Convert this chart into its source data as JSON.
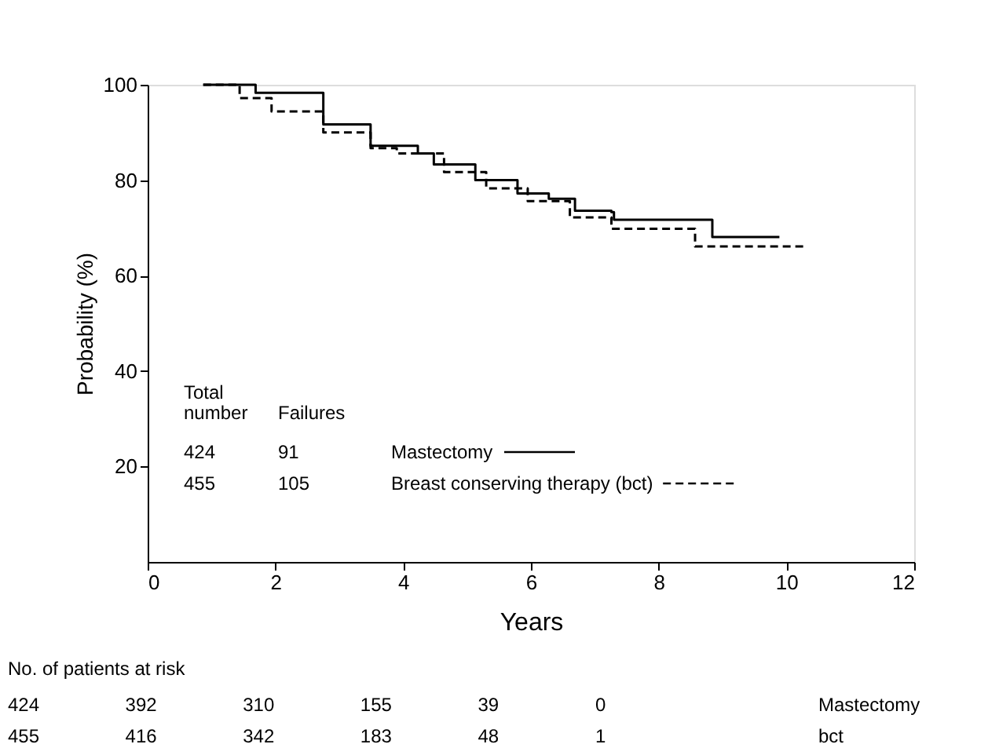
{
  "chart_data": {
    "type": "step",
    "xlabel": "Years",
    "ylabel": "Probability (%)",
    "xlim": [
      0,
      12
    ],
    "xticks": [
      0,
      2,
      4,
      6,
      8,
      10,
      12
    ],
    "ylim": [
      0,
      100
    ],
    "yticks": [
      20,
      40,
      60,
      80,
      100
    ],
    "grid": false,
    "legend": "left",
    "marker": "none",
    "series": [
      {
        "name": "Mastectomy",
        "color": "#000000",
        "line_style": "solid",
        "x": [
          0.87,
          1.69,
          2.75,
          3.49,
          4.23,
          4.48,
          5.13,
          5.79,
          6.28,
          6.69,
          7.26,
          7.3,
          8.84,
          9.89
        ],
        "values": [
          100,
          98.3,
          91.7,
          87.2,
          85.6,
          83.3,
          80,
          77.2,
          76.1,
          73.6,
          73.3,
          71.7,
          68.1,
          68.1
        ]
      },
      {
        "name": "Breast conserving therapy (bct)",
        "color": "#000000",
        "line_style": "dashed",
        "x": [
          0.87,
          1.44,
          1.94,
          2.75,
          3.49,
          3.9,
          4.64,
          5.3,
          5.95,
          6.61,
          7.26,
          8.57,
          10.28
        ],
        "values": [
          100,
          97.2,
          94.4,
          90,
          86.7,
          85.6,
          81.7,
          78.3,
          75.6,
          72.2,
          69.8,
          66.1,
          66.1
        ]
      }
    ],
    "annotations": [
      "Total number",
      "Failures",
      "424 91",
      "455 105",
      "No. of patients at risk",
      "424 392 310 155 39 0 Mastectomy",
      "455 416 342 183 48 1 bct"
    ]
  }
}
